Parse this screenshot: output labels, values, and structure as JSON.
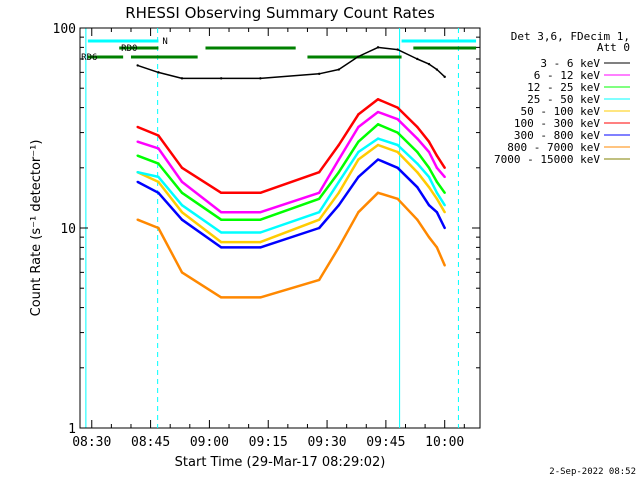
{
  "chart_data": {
    "type": "line",
    "title": "RHESSI Observing Summary Count Rates",
    "xlabel": "Start Time (29-Mar-17 08:29:02)",
    "ylabel": "Count Rate (s⁻¹ detector⁻¹)",
    "xaxis_type": "time",
    "xlim": [
      "08:27",
      "10:09"
    ],
    "ylim": [
      1,
      100
    ],
    "yscale": "log",
    "x_tick_labels": [
      "08:30",
      "08:45",
      "09:00",
      "09:15",
      "09:30",
      "09:45",
      "10:00"
    ],
    "y_tick_labels": [
      "1",
      "10",
      "100"
    ],
    "legend_header": [
      "Det 3,6, FDecim 1,",
      "Att 0"
    ],
    "legend_position": "right",
    "series": [
      {
        "name": "3 - 6 keV",
        "color": "#000000",
        "values": [
          [
            8.7,
            65
          ],
          [
            14,
            60
          ],
          [
            20,
            56
          ],
          [
            30,
            56
          ],
          [
            40,
            56
          ],
          [
            55,
            59
          ],
          [
            60,
            62
          ],
          [
            65,
            72
          ],
          [
            70,
            80
          ],
          [
            75,
            78
          ],
          [
            80,
            70
          ],
          [
            83,
            66
          ],
          [
            85,
            62
          ],
          [
            87,
            57
          ]
        ]
      },
      {
        "name": "6 - 12 keV",
        "color": "#ff00ff",
        "values": [
          [
            8.7,
            27
          ],
          [
            14,
            25
          ],
          [
            20,
            17
          ],
          [
            30,
            12
          ],
          [
            40,
            12
          ],
          [
            55,
            15
          ],
          [
            60,
            22
          ],
          [
            65,
            32
          ],
          [
            70,
            38
          ],
          [
            75,
            35
          ],
          [
            80,
            28
          ],
          [
            83,
            24
          ],
          [
            85,
            20
          ],
          [
            87,
            18
          ]
        ]
      },
      {
        "name": "12 - 25 keV",
        "color": "#00ff00",
        "values": [
          [
            8.7,
            23
          ],
          [
            14,
            21
          ],
          [
            20,
            15
          ],
          [
            30,
            11
          ],
          [
            40,
            11
          ],
          [
            55,
            14
          ],
          [
            60,
            19
          ],
          [
            65,
            27
          ],
          [
            70,
            33
          ],
          [
            75,
            30
          ],
          [
            80,
            24
          ],
          [
            83,
            20
          ],
          [
            85,
            17
          ],
          [
            87,
            15
          ]
        ]
      },
      {
        "name": "25 - 50 keV",
        "color": "#00ffff",
        "values": [
          [
            8.7,
            19
          ],
          [
            14,
            18
          ],
          [
            20,
            13
          ],
          [
            30,
            9.5
          ],
          [
            40,
            9.5
          ],
          [
            55,
            12
          ],
          [
            60,
            17
          ],
          [
            65,
            24
          ],
          [
            70,
            28
          ],
          [
            75,
            26
          ],
          [
            80,
            21
          ],
          [
            83,
            18
          ],
          [
            85,
            15
          ],
          [
            87,
            13
          ]
        ]
      },
      {
        "name": "50 - 100 keV",
        "color": "#ffcc00",
        "values": [
          [
            8.7,
            19
          ],
          [
            14,
            17
          ],
          [
            20,
            12
          ],
          [
            30,
            8.5
          ],
          [
            40,
            8.5
          ],
          [
            55,
            11
          ],
          [
            60,
            15
          ],
          [
            65,
            22
          ],
          [
            70,
            26
          ],
          [
            75,
            24
          ],
          [
            80,
            19
          ],
          [
            83,
            16
          ],
          [
            85,
            14
          ],
          [
            87,
            12
          ]
        ]
      },
      {
        "name": "100 - 300 keV",
        "color": "#ff0000",
        "values": [
          [
            8.7,
            32
          ],
          [
            14,
            29
          ],
          [
            20,
            20
          ],
          [
            30,
            15
          ],
          [
            40,
            15
          ],
          [
            55,
            19
          ],
          [
            60,
            26
          ],
          [
            65,
            37
          ],
          [
            70,
            44
          ],
          [
            75,
            40
          ],
          [
            80,
            32
          ],
          [
            83,
            27
          ],
          [
            85,
            23
          ],
          [
            87,
            20
          ]
        ]
      },
      {
        "name": "300 - 800 keV",
        "color": "#0000ff",
        "values": [
          [
            8.7,
            17
          ],
          [
            14,
            15
          ],
          [
            20,
            11
          ],
          [
            30,
            8
          ],
          [
            40,
            8
          ],
          [
            55,
            10
          ],
          [
            60,
            13
          ],
          [
            65,
            18
          ],
          [
            70,
            22
          ],
          [
            75,
            20
          ],
          [
            80,
            16
          ],
          [
            83,
            13
          ],
          [
            85,
            12
          ],
          [
            87,
            10
          ]
        ]
      },
      {
        "name": "800 - 7000 keV",
        "color": "#ff8800",
        "values": [
          [
            8.7,
            11
          ],
          [
            14,
            10
          ],
          [
            20,
            6
          ],
          [
            30,
            4.5
          ],
          [
            40,
            4.5
          ],
          [
            55,
            5.5
          ],
          [
            60,
            8
          ],
          [
            65,
            12
          ],
          [
            70,
            15
          ],
          [
            75,
            14
          ],
          [
            80,
            11
          ],
          [
            83,
            9
          ],
          [
            85,
            8
          ],
          [
            87,
            6.5
          ]
        ]
      },
      {
        "name": "7000 - 15000 keV",
        "color": "#808000",
        "values": []
      }
    ],
    "annotations": {
      "flags": [
        {
          "label": "N",
          "color": "#00ffff",
          "segments": [
            [
              "08:29",
              "08:47"
            ],
            [
              "09:49",
              "10:08"
            ]
          ]
        },
        {
          "label": "RD0",
          "color": "#008000",
          "segments": [
            [
              "08:37",
              "08:47"
            ],
            [
              "08:59",
              "09:22"
            ],
            [
              "09:52",
              "10:08"
            ]
          ]
        },
        {
          "label": "RD6",
          "color": "#008000",
          "segments": [
            [
              "08:29",
              "08:38"
            ],
            [
              "08:40",
              "08:57"
            ],
            [
              "09:25",
              "09:49"
            ]
          ]
        }
      ],
      "vertical_lines": [
        {
          "time": "08:28.5",
          "color": "#00ffff",
          "style": "solid"
        },
        {
          "time": "08:46.8",
          "color": "#00ffff",
          "style": "dashed"
        },
        {
          "time": "09:48.5",
          "color": "#00ffff",
          "style": "solid"
        },
        {
          "time": "10:03.5",
          "color": "#00ffff",
          "style": "dashed"
        }
      ]
    },
    "grid": false
  },
  "timestamp": "2-Sep-2022 08:52"
}
